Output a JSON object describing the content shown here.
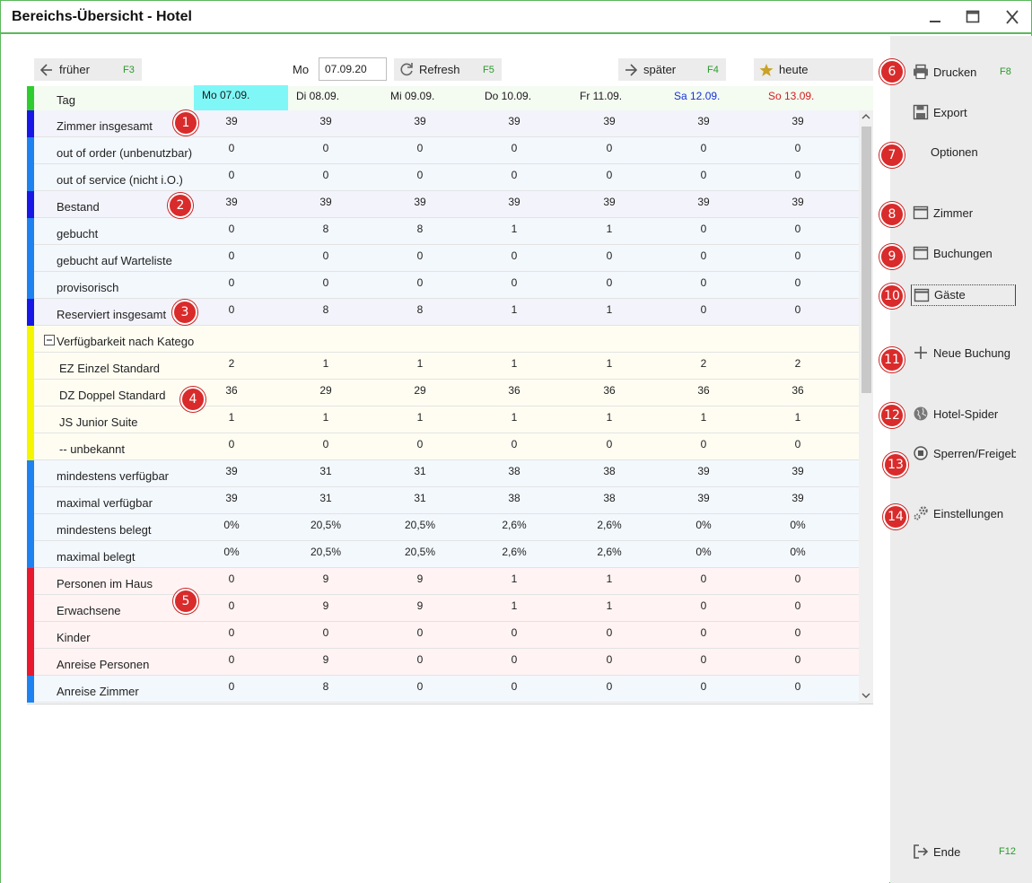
{
  "window": {
    "title": "Bereichs-Übersicht - Hotel"
  },
  "toolbar": {
    "earlier_label": "früher",
    "earlier_key": "F3",
    "day_label": "Mo",
    "date_value": "07.09.20",
    "refresh_label": "Refresh",
    "refresh_key": "F5",
    "later_label": "später",
    "later_key": "F4",
    "today_label": "heute"
  },
  "grid": {
    "row_header": "Tag",
    "columns": [
      {
        "label": "Mo 07.09.",
        "color": "#1a1a1a",
        "highlight": true
      },
      {
        "label": "Di 08.09.",
        "color": "#1a1a1a",
        "highlight": false
      },
      {
        "label": "Mi 09.09.",
        "color": "#1a1a1a",
        "highlight": false
      },
      {
        "label": "Do 10.09.",
        "color": "#1a1a1a",
        "highlight": false
      },
      {
        "label": "Fr 11.09.",
        "color": "#1a1a1a",
        "highlight": false
      },
      {
        "label": "Sa 12.09.",
        "color": "#1531d6",
        "highlight": false
      },
      {
        "label": "So 13.09.",
        "color": "#d41c1c",
        "highlight": false
      }
    ],
    "rows": [
      {
        "label": "Zimmer insgesamt",
        "group": "totals",
        "values": [
          "39",
          "39",
          "39",
          "39",
          "39",
          "39",
          "39"
        ]
      },
      {
        "label": "out of order (unbenutzbar)",
        "group": "status",
        "values": [
          "0",
          "0",
          "0",
          "0",
          "0",
          "0",
          "0"
        ]
      },
      {
        "label": "out of service (nicht i.O.)",
        "group": "status",
        "values": [
          "0",
          "0",
          "0",
          "0",
          "0",
          "0",
          "0"
        ]
      },
      {
        "label": "Bestand",
        "group": "totals",
        "values": [
          "39",
          "39",
          "39",
          "39",
          "39",
          "39",
          "39"
        ]
      },
      {
        "label": "gebucht",
        "group": "status",
        "values": [
          "0",
          "8",
          "8",
          "1",
          "1",
          "0",
          "0"
        ]
      },
      {
        "label": "gebucht auf Warteliste",
        "group": "status",
        "values": [
          "0",
          "0",
          "0",
          "0",
          "0",
          "0",
          "0"
        ]
      },
      {
        "label": "provisorisch",
        "group": "status",
        "values": [
          "0",
          "0",
          "0",
          "0",
          "0",
          "0",
          "0"
        ]
      },
      {
        "label": "Reserviert insgesamt",
        "group": "totals",
        "values": [
          "0",
          "8",
          "8",
          "1",
          "1",
          "0",
          "0"
        ]
      },
      {
        "label": "Verfügbarkeit nach Kategorie",
        "group": "category-header",
        "values": []
      },
      {
        "label": "EZ Einzel Standard",
        "group": "category",
        "values": [
          "2",
          "1",
          "1",
          "1",
          "1",
          "2",
          "2"
        ]
      },
      {
        "label": "DZ Doppel Standard",
        "group": "category",
        "values": [
          "36",
          "29",
          "29",
          "36",
          "36",
          "36",
          "36"
        ]
      },
      {
        "label": "JS Junior Suite",
        "group": "category",
        "values": [
          "1",
          "1",
          "1",
          "1",
          "1",
          "1",
          "1"
        ]
      },
      {
        "label": "-- unbekannt",
        "group": "category",
        "values": [
          "0",
          "0",
          "0",
          "0",
          "0",
          "0",
          "0"
        ]
      },
      {
        "label": "mindestens verfügbar",
        "group": "availability",
        "values": [
          "39",
          "31",
          "31",
          "38",
          "38",
          "39",
          "39"
        ]
      },
      {
        "label": "maximal verfügbar",
        "group": "availability",
        "values": [
          "39",
          "31",
          "31",
          "38",
          "38",
          "39",
          "39"
        ]
      },
      {
        "label": "mindestens belegt",
        "group": "availability",
        "values": [
          "0%",
          "20,5%",
          "20,5%",
          "2,6%",
          "2,6%",
          "0%",
          "0%"
        ]
      },
      {
        "label": "maximal belegt",
        "group": "availability",
        "values": [
          "0%",
          "20,5%",
          "20,5%",
          "2,6%",
          "2,6%",
          "0%",
          "0%"
        ]
      },
      {
        "label": "Personen im Haus",
        "group": "persons",
        "values": [
          "0",
          "9",
          "9",
          "1",
          "1",
          "0",
          "0"
        ]
      },
      {
        "label": "Erwachsene",
        "group": "persons",
        "values": [
          "0",
          "9",
          "9",
          "1",
          "1",
          "0",
          "0"
        ]
      },
      {
        "label": "Kinder",
        "group": "persons",
        "values": [
          "0",
          "0",
          "0",
          "0",
          "0",
          "0",
          "0"
        ]
      },
      {
        "label": "Anreise Personen",
        "group": "persons",
        "values": [
          "0",
          "9",
          "0",
          "0",
          "0",
          "0",
          "0"
        ]
      },
      {
        "label": "Anreise Zimmer",
        "group": "availability",
        "values": [
          "0",
          "8",
          "0",
          "0",
          "0",
          "0",
          "0"
        ]
      }
    ]
  },
  "groups": {
    "totals": {
      "bar": "#1818e6",
      "bg": "#f3f3fb"
    },
    "status": {
      "bar": "#1e82f0",
      "bg": "#f3f8fd"
    },
    "category-header": {
      "bar": "#f5f500",
      "bg": "#fffdf2"
    },
    "category": {
      "bar": "#f5f500",
      "bg": "#fffdf2"
    },
    "availability": {
      "bar": "#1e82f0",
      "bg": "#f3f8fd"
    },
    "persons": {
      "bar": "#e8182f",
      "bg": "#fff3f3"
    }
  },
  "sidebar": {
    "print_label": "Drucken",
    "print_key": "F8",
    "export_label": "Export",
    "options_label": "Optionen",
    "rooms_label": "Zimmer",
    "bookings_label": "Buchungen",
    "guests_label": "Gäste",
    "new_booking_label": "Neue Buchung",
    "spider_label": "Hotel-Spider",
    "block_label": "Sperren/Freigeben",
    "settings_label": "Einstellungen",
    "end_label": "Ende",
    "end_key": "F12"
  },
  "badges": [
    "1",
    "2",
    "3",
    "4",
    "5",
    "6",
    "7",
    "8",
    "9",
    "10",
    "11",
    "12",
    "13",
    "14"
  ]
}
